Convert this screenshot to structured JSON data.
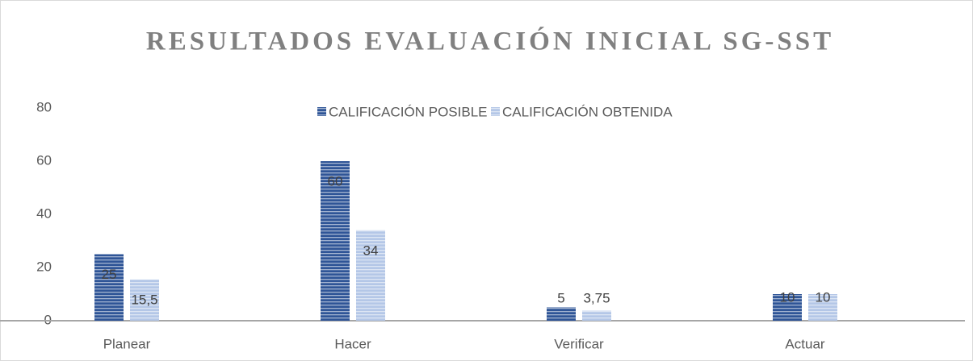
{
  "chart_data": {
    "type": "bar",
    "title": "RESULTADOS EVALUACIÓN INICIAL SG-SST",
    "categories": [
      "Planear",
      "Hacer",
      "Verificar",
      "Actuar"
    ],
    "series": [
      {
        "name": "CALIFICACIÓN POSIBLE",
        "color": "#2f5597",
        "values": [
          25,
          60,
          5,
          10
        ]
      },
      {
        "name": "CALIFICACIÓN OBTENIDA",
        "color": "#b4c7e7",
        "values": [
          15.5,
          34,
          3.75,
          10
        ],
        "value_labels": [
          "15,5",
          "34",
          "3,75",
          "10"
        ]
      }
    ],
    "ylim": [
      0,
      80
    ],
    "yticks": [
      0,
      20,
      40,
      60,
      80
    ],
    "grid": false,
    "legend": "top"
  }
}
